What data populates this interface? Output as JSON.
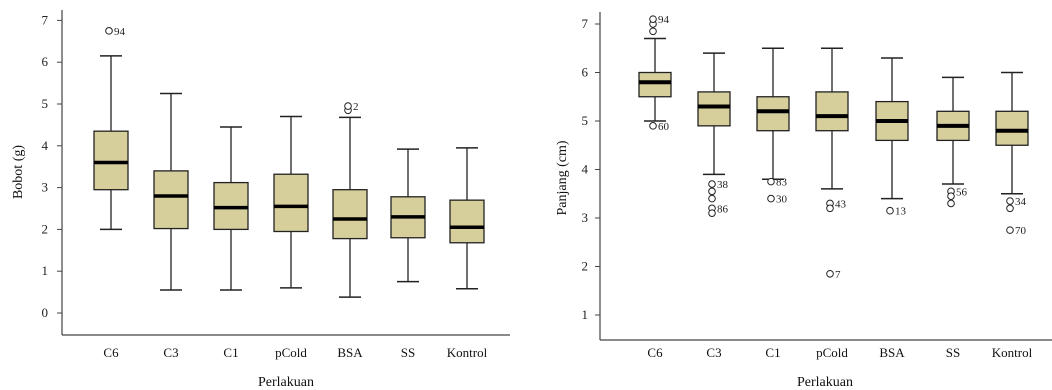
{
  "chart_data": [
    {
      "type": "boxplot",
      "xlabel": "Perlakuan",
      "ylabel": "Bobot (g)",
      "ylim": [
        0,
        7
      ],
      "yticks": [
        0,
        1,
        2,
        3,
        4,
        5,
        6,
        7
      ],
      "box_color": "#d6cf9c",
      "categories": [
        "C6",
        "C3",
        "C1",
        "pCold",
        "BSA",
        "SS",
        "Kontrol"
      ],
      "boxes": [
        {
          "min": 2.0,
          "q1": 2.95,
          "median": 3.6,
          "q3": 4.35,
          "max": 6.15,
          "outliers": [
            {
              "value": 6.75,
              "label": "94"
            }
          ]
        },
        {
          "min": 0.55,
          "q1": 2.02,
          "median": 2.8,
          "q3": 3.4,
          "max": 5.25,
          "outliers": []
        },
        {
          "min": 0.55,
          "q1": 2.0,
          "median": 2.52,
          "q3": 3.12,
          "max": 4.45,
          "outliers": []
        },
        {
          "min": 0.6,
          "q1": 1.95,
          "median": 2.55,
          "q3": 3.32,
          "max": 4.7,
          "outliers": []
        },
        {
          "min": 0.38,
          "q1": 1.78,
          "median": 2.25,
          "q3": 2.95,
          "max": 4.68,
          "outliers": [
            {
              "value": 4.85,
              "label": ""
            },
            {
              "value": 4.95,
              "label": "2"
            }
          ]
        },
        {
          "min": 0.75,
          "q1": 1.8,
          "median": 2.3,
          "q3": 2.78,
          "max": 3.92,
          "outliers": []
        },
        {
          "min": 0.58,
          "q1": 1.68,
          "median": 2.05,
          "q3": 2.7,
          "max": 3.95,
          "outliers": []
        }
      ]
    },
    {
      "type": "boxplot",
      "xlabel": "Perlakuan",
      "ylabel": "Panjang (cm)",
      "ylim": [
        0.7,
        7.1
      ],
      "yticks": [
        1,
        2,
        3,
        4,
        5,
        6,
        7
      ],
      "box_color": "#d6cf9c",
      "categories": [
        "C6",
        "C3",
        "C1",
        "pCold",
        "BSA",
        "SS",
        "Kontrol"
      ],
      "boxes": [
        {
          "min": 5.0,
          "q1": 5.5,
          "median": 5.8,
          "q3": 6.0,
          "max": 6.7,
          "outliers": [
            {
              "value": 6.85,
              "label": ""
            },
            {
              "value": 7.0,
              "label": ""
            },
            {
              "value": 7.1,
              "label": "94"
            },
            {
              "value": 4.9,
              "label": "60"
            }
          ]
        },
        {
          "min": 3.9,
          "q1": 4.9,
          "median": 5.3,
          "q3": 5.6,
          "max": 6.4,
          "outliers": [
            {
              "value": 3.7,
              "label": "38"
            },
            {
              "value": 3.55,
              "label": ""
            },
            {
              "value": 3.4,
              "label": ""
            },
            {
              "value": 3.2,
              "label": "86"
            },
            {
              "value": 3.1,
              "label": ""
            }
          ]
        },
        {
          "min": 3.8,
          "q1": 4.8,
          "median": 5.2,
          "q3": 5.5,
          "max": 6.5,
          "outliers": [
            {
              "value": 3.75,
              "label": "83"
            },
            {
              "value": 3.4,
              "label": "30"
            }
          ]
        },
        {
          "min": 3.6,
          "q1": 4.8,
          "median": 5.1,
          "q3": 5.6,
          "max": 6.5,
          "outliers": [
            {
              "value": 3.3,
              "label": "43"
            },
            {
              "value": 3.2,
              "label": ""
            },
            {
              "value": 1.85,
              "label": "7"
            }
          ]
        },
        {
          "min": 3.4,
          "q1": 4.6,
          "median": 5.0,
          "q3": 5.4,
          "max": 6.3,
          "outliers": [
            {
              "value": 3.15,
              "label": "13"
            }
          ]
        },
        {
          "min": 3.7,
          "q1": 4.6,
          "median": 4.9,
          "q3": 5.2,
          "max": 5.9,
          "outliers": [
            {
              "value": 3.55,
              "label": "56"
            },
            {
              "value": 3.45,
              "label": ""
            },
            {
              "value": 3.3,
              "label": ""
            }
          ]
        },
        {
          "min": 3.5,
          "q1": 4.5,
          "median": 4.8,
          "q3": 5.2,
          "max": 6.0,
          "outliers": [
            {
              "value": 3.35,
              "label": "34"
            },
            {
              "value": 3.2,
              "label": ""
            },
            {
              "value": 2.75,
              "label": "70"
            }
          ]
        }
      ]
    }
  ]
}
